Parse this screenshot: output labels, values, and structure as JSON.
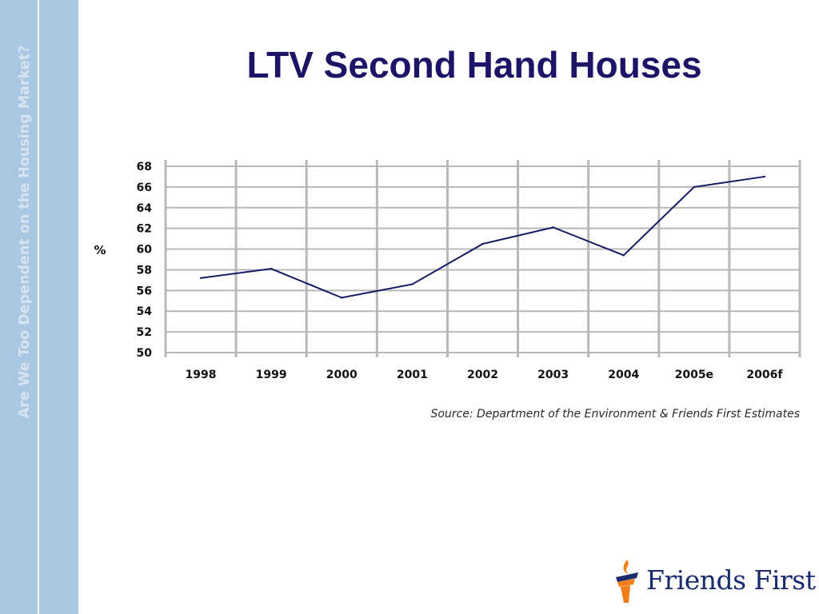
{
  "sidebar": {
    "text": "Are We Too Dependent on the Housing Market?"
  },
  "slide": {
    "title": "LTV Second Hand Houses"
  },
  "source": "Source: Department of the Environment & Friends First Estimates",
  "logo": {
    "text": "Friends First",
    "icon": "flame-torch-icon"
  },
  "colors": {
    "title": "#1c1466",
    "line": "#141a63",
    "grid": "#b8b8b8",
    "sidebar": "#a9c6e2",
    "logo_orange": "#f07d1a"
  },
  "chart_data": {
    "type": "line",
    "title": "",
    "ylabel": "%",
    "xlabel": "",
    "categories": [
      "1998",
      "1999",
      "2000",
      "2001",
      "2002",
      "2003",
      "2004",
      "2005e",
      "2006f"
    ],
    "series": [
      {
        "values": [
          57.2,
          58.1,
          55.3,
          56.6,
          60.5,
          62.1,
          59.4,
          66.0,
          67.0
        ]
      }
    ],
    "ylim": [
      50,
      68
    ],
    "yticks": [
      50,
      52,
      54,
      56,
      58,
      60,
      62,
      64,
      66,
      68
    ],
    "grid": true,
    "legend": "none"
  }
}
